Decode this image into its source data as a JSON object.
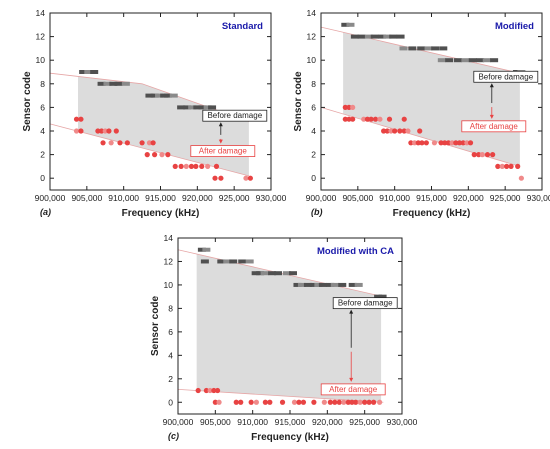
{
  "chart_data": [
    {
      "type": "scatter",
      "panel_label": "(a)",
      "title": "Standard",
      "xlabel": "Frequency (kHz)",
      "ylabel": "Sensor code",
      "xlim": [
        900000,
        930000
      ],
      "ylim": [
        -1,
        14
      ],
      "x_ticks": [
        900000,
        905000,
        910000,
        915000,
        920000,
        925000,
        930000
      ],
      "x_tick_labels": [
        "900,000",
        "905,000",
        "910,000",
        "915,000",
        "920,000",
        "925,000",
        "930,000"
      ],
      "y_ticks": [
        0,
        2,
        4,
        6,
        8,
        10,
        12,
        14
      ],
      "grid": false,
      "annotations": {
        "before": "Before damage",
        "after": "After damage"
      },
      "shade_x": [
        903800,
        927000
      ],
      "upper_trend": [
        [
          900000,
          8.9
        ],
        [
          912500,
          8.0
        ],
        [
          927000,
          4.8
        ]
      ],
      "lower_trend": [
        [
          900000,
          4.6
        ],
        [
          927000,
          0.2
        ]
      ],
      "series": [
        {
          "name": "Before damage",
          "points": [
            [
              904500,
              9
            ],
            [
              905200,
              9
            ],
            [
              906000,
              9
            ],
            [
              907000,
              8
            ],
            [
              907800,
              8
            ],
            [
              908600,
              8
            ],
            [
              909300,
              8
            ],
            [
              910300,
              8
            ],
            [
              913500,
              7
            ],
            [
              914200,
              7
            ],
            [
              914800,
              7
            ],
            [
              915500,
              7
            ],
            [
              916000,
              7
            ],
            [
              916800,
              7
            ],
            [
              917800,
              6
            ],
            [
              918600,
              6
            ],
            [
              919300,
              6
            ],
            [
              920000,
              6
            ],
            [
              920700,
              6
            ],
            [
              921400,
              6
            ],
            [
              922000,
              6
            ],
            [
              922600,
              5
            ],
            [
              923300,
              5
            ],
            [
              924000,
              5
            ],
            [
              924700,
              5
            ],
            [
              925500,
              5
            ],
            [
              926500,
              5
            ]
          ]
        },
        {
          "name": "After damage",
          "points": [
            [
              903600,
              5
            ],
            [
              904200,
              5
            ],
            [
              903600,
              4
            ],
            [
              904200,
              4
            ],
            [
              906500,
              4
            ],
            [
              907000,
              4
            ],
            [
              907500,
              4
            ],
            [
              908000,
              4
            ],
            [
              909000,
              4
            ],
            [
              907200,
              3
            ],
            [
              908300,
              3
            ],
            [
              909500,
              3
            ],
            [
              910500,
              3
            ],
            [
              912500,
              3
            ],
            [
              913500,
              3
            ],
            [
              914000,
              3
            ],
            [
              913200,
              2
            ],
            [
              914200,
              2
            ],
            [
              915200,
              2
            ],
            [
              916000,
              2
            ],
            [
              917000,
              1
            ],
            [
              917800,
              1
            ],
            [
              918500,
              1
            ],
            [
              919200,
              1
            ],
            [
              919800,
              1
            ],
            [
              920600,
              1
            ],
            [
              921400,
              1
            ],
            [
              922600,
              1
            ],
            [
              922400,
              0
            ],
            [
              923200,
              0
            ],
            [
              926600,
              0
            ],
            [
              927200,
              0
            ]
          ]
        }
      ]
    },
    {
      "type": "scatter",
      "panel_label": "(b)",
      "title": "Modified",
      "xlabel": "Frequency (kHz)",
      "ylabel": "Sensor code",
      "xlim": [
        900000,
        930000
      ],
      "ylim": [
        -1,
        14
      ],
      "x_ticks": [
        900000,
        905000,
        910000,
        915000,
        920000,
        925000,
        930000
      ],
      "x_tick_labels": [
        "900,000",
        "905,000",
        "910,000",
        "915,000",
        "920,000",
        "925,000",
        "930,000"
      ],
      "y_ticks": [
        0,
        2,
        4,
        6,
        8,
        10,
        12,
        14
      ],
      "grid": false,
      "annotations": {
        "before": "Before damage",
        "after": "After damage"
      },
      "shade_x": [
        903000,
        927000
      ],
      "upper_trend": [
        [
          900000,
          12.8
        ],
        [
          927000,
          8.9
        ]
      ],
      "lower_trend": [
        [
          900000,
          6.0
        ],
        [
          927000,
          1.0
        ]
      ],
      "series": [
        {
          "name": "Before damage",
          "points": [
            [
              903300,
              13
            ],
            [
              904000,
              13
            ],
            [
              904600,
              12
            ],
            [
              905500,
              12
            ],
            [
              906500,
              12
            ],
            [
              907300,
              12
            ],
            [
              908300,
              12
            ],
            [
              909000,
              12
            ],
            [
              909800,
              12
            ],
            [
              910800,
              12
            ],
            [
              911200,
              11
            ],
            [
              912400,
              11
            ],
            [
              913600,
              11
            ],
            [
              914600,
              11
            ],
            [
              915500,
              11
            ],
            [
              916600,
              11
            ],
            [
              916400,
              10
            ],
            [
              917400,
              10
            ],
            [
              918600,
              10
            ],
            [
              919600,
              10
            ],
            [
              920600,
              10
            ],
            [
              921600,
              10
            ],
            [
              922500,
              10
            ],
            [
              923500,
              10
            ],
            [
              926600,
              9
            ],
            [
              927200,
              9
            ]
          ]
        },
        {
          "name": "After damage",
          "points": [
            [
              903300,
              6
            ],
            [
              903800,
              6
            ],
            [
              904300,
              6
            ],
            [
              903300,
              5
            ],
            [
              903800,
              5
            ],
            [
              904300,
              5
            ],
            [
              905800,
              5
            ],
            [
              906300,
              5
            ],
            [
              906800,
              5
            ],
            [
              907400,
              5
            ],
            [
              908000,
              5
            ],
            [
              909300,
              5
            ],
            [
              908500,
              4
            ],
            [
              909000,
              4
            ],
            [
              909500,
              4
            ],
            [
              910000,
              4
            ],
            [
              910700,
              4
            ],
            [
              911300,
              4
            ],
            [
              911800,
              4
            ],
            [
              913400,
              4
            ],
            [
              911300,
              5
            ],
            [
              912200,
              3
            ],
            [
              912700,
              3
            ],
            [
              913200,
              3
            ],
            [
              913700,
              3
            ],
            [
              914300,
              3
            ],
            [
              915400,
              3
            ],
            [
              916300,
              3
            ],
            [
              916800,
              3
            ],
            [
              917300,
              3
            ],
            [
              917800,
              3
            ],
            [
              918300,
              3
            ],
            [
              918800,
              3
            ],
            [
              919300,
              3
            ],
            [
              919800,
              3
            ],
            [
              920300,
              3
            ],
            [
              920800,
              2
            ],
            [
              921400,
              2
            ],
            [
              921900,
              2
            ],
            [
              922600,
              2
            ],
            [
              923300,
              2
            ],
            [
              924000,
              1
            ],
            [
              924600,
              1
            ],
            [
              925200,
              1
            ],
            [
              925800,
              1
            ],
            [
              926700,
              1
            ],
            [
              927200,
              0
            ]
          ]
        }
      ]
    },
    {
      "type": "scatter",
      "panel_label": "(c)",
      "title": "Modified with CA",
      "xlabel": "Frequency (kHz)",
      "ylabel": "Sensor code",
      "xlim": [
        900000,
        930000
      ],
      "ylim": [
        -1,
        14
      ],
      "x_ticks": [
        900000,
        905000,
        910000,
        915000,
        920000,
        925000,
        930000
      ],
      "x_tick_labels": [
        "900,000",
        "905,000",
        "910,000",
        "915,000",
        "920,000",
        "925,000",
        "930,000"
      ],
      "y_ticks": [
        0,
        2,
        4,
        6,
        8,
        10,
        12,
        14
      ],
      "grid": false,
      "annotations": {
        "before": "Before damage",
        "after": "After damage"
      },
      "shade_x": [
        902500,
        927200
      ],
      "upper_trend": [
        [
          900000,
          13.0
        ],
        [
          927500,
          9.0
        ]
      ],
      "lower_trend": [
        [
          900000,
          1.1
        ],
        [
          927500,
          0.0
        ]
      ],
      "series": [
        {
          "name": "Before damage",
          "points": [
            [
              903200,
              13
            ],
            [
              903800,
              13
            ],
            [
              903600,
              12
            ],
            [
              905800,
              12
            ],
            [
              906600,
              12
            ],
            [
              907400,
              12
            ],
            [
              908600,
              12
            ],
            [
              909600,
              12
            ],
            [
              910400,
              11
            ],
            [
              911000,
              11
            ],
            [
              911600,
              11
            ],
            [
              912600,
              11
            ],
            [
              913400,
              11
            ],
            [
              914600,
              11
            ],
            [
              915400,
              11
            ],
            [
              916000,
              10
            ],
            [
              916600,
              10
            ],
            [
              917400,
              10
            ],
            [
              918200,
              10
            ],
            [
              918800,
              10
            ],
            [
              919400,
              10
            ],
            [
              920400,
              10
            ],
            [
              921000,
              10
            ],
            [
              922000,
              10
            ],
            [
              923400,
              10
            ],
            [
              924200,
              10
            ],
            [
              926800,
              9
            ],
            [
              927400,
              9
            ]
          ]
        },
        {
          "name": "After damage",
          "points": [
            [
              902700,
              1
            ],
            [
              903800,
              1
            ],
            [
              904300,
              1
            ],
            [
              904800,
              1
            ],
            [
              905300,
              1
            ],
            [
              905000,
              0
            ],
            [
              905500,
              0
            ],
            [
              907800,
              0
            ],
            [
              908400,
              0
            ],
            [
              909800,
              0
            ],
            [
              910500,
              0
            ],
            [
              911700,
              0
            ],
            [
              912300,
              0
            ],
            [
              914000,
              0
            ],
            [
              915600,
              0
            ],
            [
              916200,
              0
            ],
            [
              916800,
              0
            ],
            [
              918200,
              0
            ],
            [
              919600,
              0
            ],
            [
              920400,
              0
            ],
            [
              921000,
              0
            ],
            [
              921600,
              0
            ],
            [
              922200,
              0
            ],
            [
              922800,
              0
            ],
            [
              923300,
              0
            ],
            [
              923800,
              0
            ],
            [
              924400,
              0
            ],
            [
              925000,
              0
            ],
            [
              925600,
              0
            ],
            [
              926200,
              0
            ],
            [
              927000,
              0
            ]
          ]
        }
      ]
    }
  ],
  "colors": {
    "before": "#505050",
    "before_light": "#8a8a8a",
    "after": "#e84343",
    "after_light": "#f08a8a",
    "shade": "#dcdcdc",
    "title": "#1a1aaa",
    "trend": "#e6a6a6",
    "annotation_after": "#e84343",
    "axis": "#222222"
  }
}
